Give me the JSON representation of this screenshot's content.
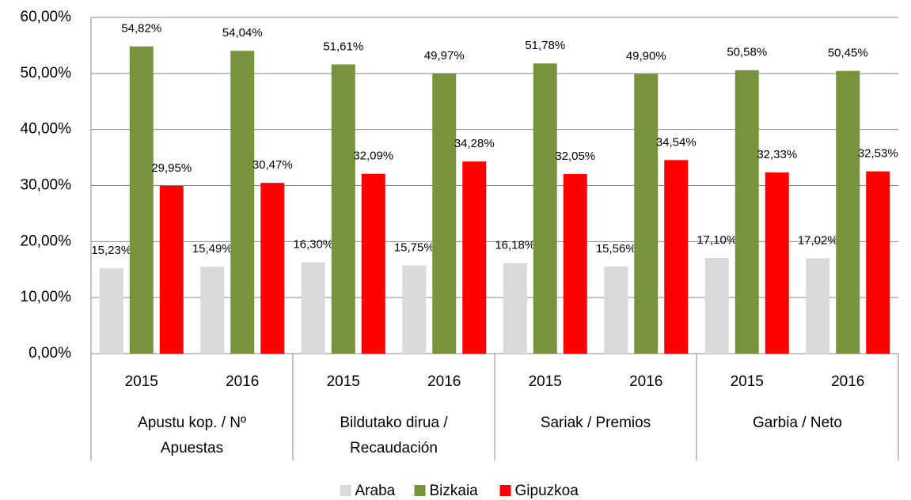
{
  "chart_data": {
    "type": "bar",
    "categories": [
      "2015",
      "2016",
      "2015",
      "2016",
      "2015",
      "2016",
      "2015",
      "2016"
    ],
    "groups": [
      {
        "lines": [
          "Apustu kop. /   Nº",
          "Apuestas"
        ]
      },
      {
        "lines": [
          "Bildutako dirua /",
          "Recaudación"
        ]
      },
      {
        "lines": [
          "Sariak / Premios"
        ]
      },
      {
        "lines": [
          "Garbia / Neto"
        ]
      }
    ],
    "series": [
      {
        "name": "Araba",
        "color": "#d9d9d9",
        "values": [
          15.23,
          15.49,
          16.3,
          15.75,
          16.18,
          15.56,
          17.1,
          17.02
        ],
        "value_labels": [
          "15,23%",
          "15,49%",
          "16,30%",
          "15,75%",
          "16,18%",
          "15,56%",
          "17,10%",
          "17,02%"
        ]
      },
      {
        "name": "Bizkaia",
        "color": "#77933c",
        "values": [
          54.82,
          54.04,
          51.61,
          49.97,
          51.78,
          49.9,
          50.58,
          50.45
        ],
        "value_labels": [
          "54,82%",
          "54,04%",
          "51,61%",
          "49,97%",
          "51,78%",
          "49,90%",
          "50,58%",
          "50,45%"
        ]
      },
      {
        "name": "Gipuzkoa",
        "color": "#ff0000",
        "values": [
          29.95,
          30.47,
          32.09,
          34.28,
          32.05,
          34.54,
          32.33,
          32.53
        ],
        "value_labels": [
          "29,95%",
          "30,47%",
          "32,09%",
          "34,28%",
          "32,05%",
          "34,54%",
          "32,33%",
          "32,53%"
        ]
      }
    ],
    "ylim": [
      0,
      60
    ],
    "yticks": [
      {
        "value": 0,
        "label": "0,00%"
      },
      {
        "value": 10,
        "label": "10,00%"
      },
      {
        "value": 20,
        "label": "20,00%"
      },
      {
        "value": 30,
        "label": "30,00%"
      },
      {
        "value": 40,
        "label": "40,00%"
      },
      {
        "value": 50,
        "label": "50,00%"
      },
      {
        "value": 60,
        "label": "60,00%"
      }
    ],
    "grid": true,
    "legend": "bottom"
  }
}
